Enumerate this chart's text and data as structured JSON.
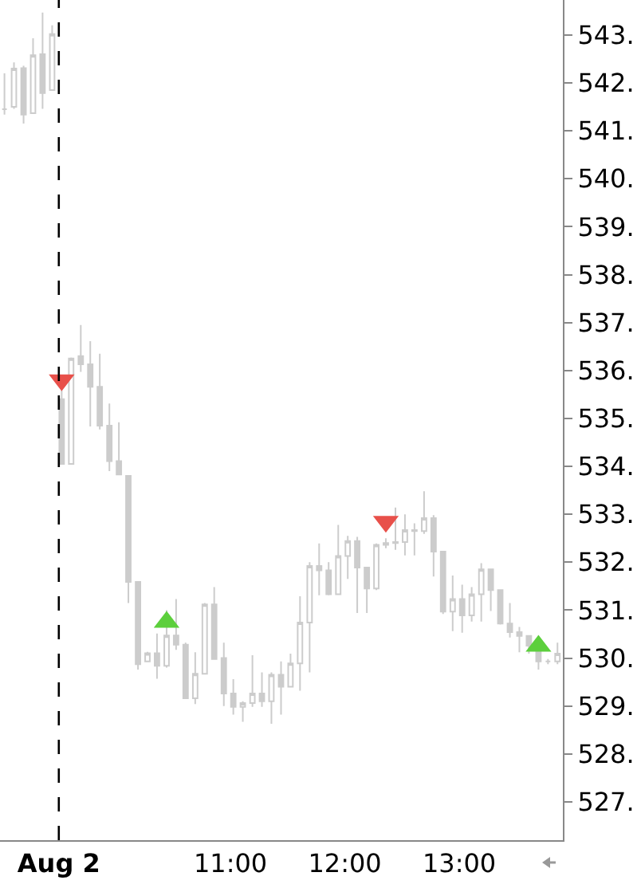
{
  "chart_data": {
    "type": "candlestick",
    "color": "#cccccc",
    "x": [
      9.025,
      9.108,
      9.192,
      9.275,
      9.358,
      9.442,
      9.525,
      9.608,
      9.692,
      9.775,
      9.858,
      9.942,
      10.025,
      10.108,
      10.192,
      10.275,
      10.358,
      10.442,
      10.525,
      10.608,
      10.692,
      10.775,
      10.858,
      10.942,
      11.025,
      11.108,
      11.192,
      11.275,
      11.358,
      11.442,
      11.525,
      11.608,
      11.692,
      11.775,
      11.858,
      11.942,
      12.025,
      12.108,
      12.192,
      12.275,
      12.358,
      12.442,
      12.525,
      12.608,
      12.692,
      12.775,
      12.858,
      12.942,
      13.025,
      13.108,
      13.192,
      13.275,
      13.358,
      13.442,
      13.525,
      13.608,
      13.692,
      13.775,
      13.858
    ],
    "ohlc": [
      [
        541.45,
        542.2,
        541.34,
        541.45
      ],
      [
        541.5,
        542.43,
        541.46,
        542.3
      ],
      [
        542.31,
        542.36,
        541.15,
        541.34
      ],
      [
        541.37,
        542.93,
        541.37,
        542.58
      ],
      [
        542.6,
        543.47,
        541.46,
        541.79
      ],
      [
        541.85,
        543.2,
        541.85,
        543.02
      ],
      [
        535.4,
        535.58,
        534.05,
        534.05
      ],
      [
        534.05,
        536.27,
        534.05,
        536.25
      ],
      [
        536.3,
        536.95,
        535.97,
        536.13
      ],
      [
        536.13,
        536.61,
        534.83,
        535.66
      ],
      [
        535.66,
        536.35,
        534.77,
        534.85
      ],
      [
        534.85,
        535.31,
        533.9,
        534.11
      ],
      [
        534.11,
        534.92,
        533.83,
        533.83
      ],
      [
        533.8,
        533.81,
        531.15,
        531.59
      ],
      [
        531.59,
        531.59,
        529.76,
        529.87
      ],
      [
        529.93,
        530.13,
        529.93,
        530.1
      ],
      [
        530.1,
        530.51,
        529.57,
        529.84
      ],
      [
        529.84,
        531.0,
        529.8,
        530.47
      ],
      [
        530.47,
        531.23,
        530.17,
        530.28
      ],
      [
        530.28,
        530.32,
        529.15,
        529.16
      ],
      [
        529.16,
        530.12,
        529.04,
        529.67
      ],
      [
        529.67,
        531.15,
        529.67,
        531.12
      ],
      [
        531.12,
        531.48,
        529.98,
        529.98
      ],
      [
        530.0,
        530.32,
        529.0,
        529.26
      ],
      [
        529.26,
        529.56,
        528.82,
        528.98
      ],
      [
        528.98,
        529.1,
        528.67,
        529.06
      ],
      [
        529.06,
        530.06,
        528.98,
        529.26
      ],
      [
        529.26,
        529.7,
        528.98,
        529.1
      ],
      [
        529.1,
        529.7,
        528.63,
        529.65
      ],
      [
        529.65,
        529.93,
        528.82,
        529.4
      ],
      [
        529.4,
        530.09,
        529.4,
        529.89
      ],
      [
        529.89,
        531.29,
        529.32,
        530.74
      ],
      [
        530.74,
        532.0,
        529.7,
        531.92
      ],
      [
        531.92,
        532.39,
        531.31,
        531.83
      ],
      [
        531.83,
        532.0,
        531.31,
        531.33
      ],
      [
        531.33,
        532.78,
        531.33,
        532.13
      ],
      [
        532.13,
        532.55,
        531.65,
        532.44
      ],
      [
        532.44,
        532.53,
        530.94,
        531.89
      ],
      [
        531.89,
        531.89,
        530.94,
        531.45
      ],
      [
        531.45,
        532.39,
        531.42,
        532.36
      ],
      [
        532.36,
        532.5,
        532.29,
        532.4
      ],
      [
        532.4,
        533.14,
        532.26,
        532.42
      ],
      [
        532.42,
        533.0,
        532.14,
        532.67
      ],
      [
        532.67,
        532.81,
        532.14,
        532.65
      ],
      [
        532.65,
        533.48,
        532.59,
        532.92
      ],
      [
        532.92,
        532.98,
        531.7,
        532.22
      ],
      [
        532.22,
        532.22,
        530.92,
        530.97
      ],
      [
        530.97,
        531.72,
        530.56,
        531.23
      ],
      [
        531.23,
        531.53,
        530.53,
        530.89
      ],
      [
        530.89,
        531.48,
        530.76,
        531.33
      ],
      [
        531.33,
        531.98,
        530.76,
        531.85
      ],
      [
        531.85,
        531.85,
        530.98,
        531.42
      ],
      [
        531.42,
        531.42,
        530.7,
        530.72
      ],
      [
        530.72,
        531.15,
        530.43,
        530.54
      ],
      [
        530.54,
        530.65,
        530.12,
        530.46
      ],
      [
        530.46,
        530.48,
        530.09,
        530.26
      ],
      [
        530.26,
        530.26,
        529.76,
        529.93
      ],
      [
        529.93,
        529.98,
        529.87,
        529.93
      ],
      [
        529.93,
        530.32,
        529.87,
        530.09
      ]
    ],
    "series": [
      {
        "type": "scatter",
        "marker": "triangle-down",
        "color": "#e8504a",
        "x": [
          9.525,
          12.358
        ],
        "values": [
          535.8,
          532.85
        ]
      },
      {
        "type": "scatter",
        "marker": "triangle",
        "color": "#5ccf3c",
        "x": [
          10.442,
          13.692
        ],
        "values": [
          530.75,
          530.25
        ]
      }
    ],
    "xlim": [
      8.986,
      13.905
    ],
    "xticks": [
      {
        "value": 9.5,
        "label": "Aug 2"
      },
      {
        "value": 11,
        "label": "11:00"
      },
      {
        "value": 12,
        "label": "12:00"
      },
      {
        "value": 13,
        "label": "13:00"
      }
    ],
    "ylim": [
      526.2,
      543.73
    ],
    "yticks": [
      {
        "value": 527,
        "label": "527."
      },
      {
        "value": 528,
        "label": "528."
      },
      {
        "value": 529,
        "label": "529."
      },
      {
        "value": 530,
        "label": "530."
      },
      {
        "value": 531,
        "label": "531."
      },
      {
        "value": 532,
        "label": "532."
      },
      {
        "value": 533,
        "label": "533."
      },
      {
        "value": 534,
        "label": "534."
      },
      {
        "value": 535,
        "label": "535."
      },
      {
        "value": 536,
        "label": "536."
      },
      {
        "value": 537,
        "label": "537."
      },
      {
        "value": 538,
        "label": "538."
      },
      {
        "value": 539,
        "label": "539."
      },
      {
        "value": 540,
        "label": "540."
      },
      {
        "value": 541,
        "label": "541."
      },
      {
        "value": 542,
        "label": "542."
      },
      {
        "value": 543,
        "label": "543."
      }
    ],
    "ref_lines": [
      {
        "axis": "x",
        "value": 9.5,
        "line_style": "dashed",
        "color": "#000000"
      }
    ],
    "grid": false
  }
}
